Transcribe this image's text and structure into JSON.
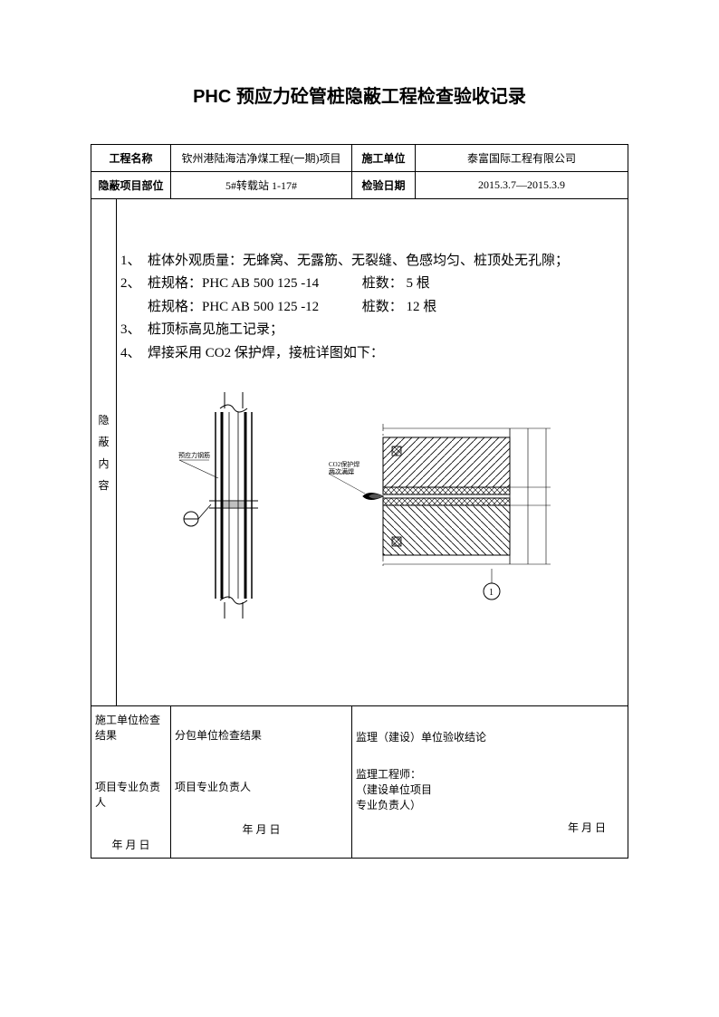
{
  "title": "PHC 预应力砼管桩隐蔽工程检查验收记录",
  "header": {
    "project_name_label": "工程名称",
    "project_name": "钦州港陆海洁净煤工程(一期)项目",
    "construction_unit_label": "施工单位",
    "construction_unit": "泰富国际工程有限公司",
    "hidden_part_label": "隐蔽项目部位",
    "hidden_part": "5#转载站 1-17#",
    "inspection_date_label": "检验日期",
    "inspection_date": "2015.3.7—2015.3.9"
  },
  "side_label": "隐蔽内容",
  "content": {
    "item1_num": "1、",
    "item1": "桩体外观质量：无蜂窝、无露筋、无裂缝、色感均匀、桩顶处无孔隙；",
    "item2_num": "2、",
    "item2a": "桩规格：PHC AB 500 125 -14",
    "item2a_count_label": "桩数：",
    "item2a_count": "5 根",
    "item2b": "桩规格：PHC AB 500 125 -12",
    "item2b_count_label": "桩数：",
    "item2b_count": "12 根",
    "item3_num": "3、",
    "item3": "桩顶标高见施工记录；",
    "item4_num": "4、",
    "item4": "焊接采用 CO2 保护焊，接桩详图如下："
  },
  "diagram": {
    "left_label": "预应力钢筋",
    "mid_label1": "CO2保护焊",
    "mid_label2": "两次满焊",
    "circle_num": "1",
    "colors": {
      "line": "#000000",
      "bg": "#ffffff"
    }
  },
  "footer": {
    "col1_title": "施工单位检查结果",
    "col2_title": "分包单位检查结果",
    "col3_title": "监理（建设）单位验收结论",
    "responsible": "项目专业负责人",
    "sup_engineer": "监理工程师：",
    "build_unit_resp1": "（建设单位项目",
    "build_unit_resp2": "专业负责人）",
    "date_fmt": "年    月    日"
  }
}
